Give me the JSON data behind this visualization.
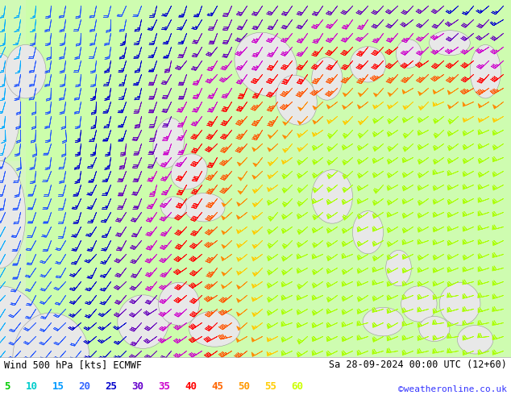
{
  "title_left": "Wind 500 hPa [kts] ECMWF",
  "title_right": "Sa 28-09-2024 00:00 UTC (12+60)",
  "credit": "©weatheronline.co.uk",
  "legend_values": [
    5,
    10,
    15,
    20,
    25,
    30,
    35,
    40,
    45,
    50,
    55,
    60
  ],
  "legend_colors": [
    "#00cc00",
    "#00cccc",
    "#0099ff",
    "#3366ff",
    "#0000cc",
    "#6600cc",
    "#cc00cc",
    "#ff0000",
    "#ff6600",
    "#ff9900",
    "#ffcc00",
    "#ccff00"
  ],
  "bg_color": "#ffffff",
  "fig_width": 6.34,
  "fig_height": 4.9,
  "dpi": 100,
  "map_bg_green": "#ccffaa",
  "map_bg_white": "#f0f0f0",
  "land_color": "#e8e8e8",
  "bottom_bar_color": "#ccffaa",
  "font_family": "DejaVu Sans Mono",
  "title_fontsize": 8.5,
  "legend_fontsize": 9,
  "credit_fontsize": 8,
  "credit_color": "#3333ff"
}
